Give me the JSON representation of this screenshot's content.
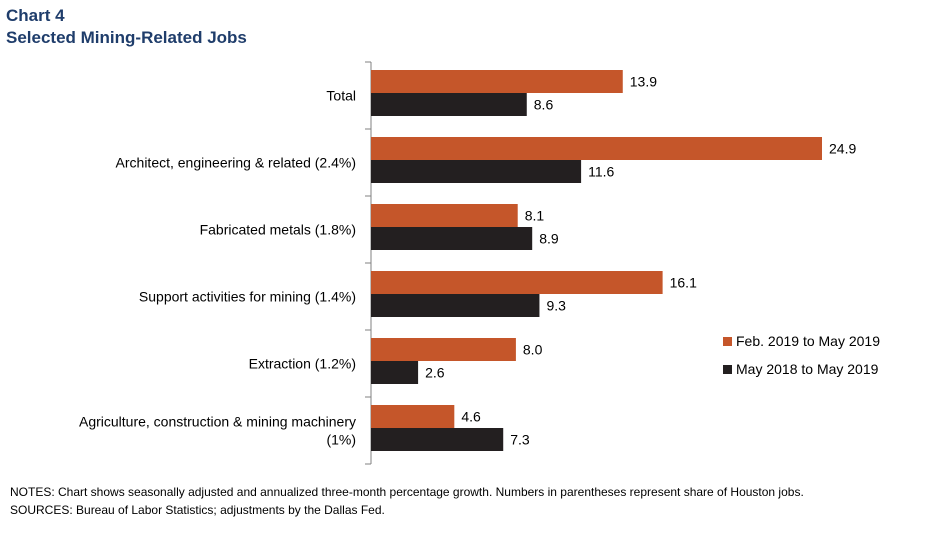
{
  "header": {
    "chart_number": "Chart 4",
    "title": "Selected Mining-Related Jobs"
  },
  "chart_data": {
    "type": "bar",
    "orientation": "horizontal",
    "categories": [
      [
        "Total"
      ],
      [
        "Architect, engineering & related (2.4%)"
      ],
      [
        "Fabricated metals (1.8%)"
      ],
      [
        "Support activities for mining (1.4%)"
      ],
      [
        "Extraction (1.2%)"
      ],
      [
        "Agriculture, construction & mining machinery",
        "(1%)"
      ]
    ],
    "series": [
      {
        "name": "Feb. 2019 to May 2019",
        "color": "#c5562a",
        "values": [
          13.9,
          24.9,
          8.1,
          16.1,
          8.0,
          4.6
        ]
      },
      {
        "name": "May 2018 to May 2019",
        "color": "#231f20",
        "values": [
          8.6,
          11.6,
          8.9,
          9.3,
          2.6,
          7.3
        ]
      }
    ],
    "value_labels": [
      [
        "13.9",
        "24.9",
        "8.1",
        "16.1",
        "8.0",
        "4.6"
      ],
      [
        "8.6",
        "11.6",
        "8.9",
        "9.3",
        "2.6",
        "7.3"
      ]
    ],
    "xlim": [
      0,
      30
    ],
    "grid": false,
    "legend_position": "right"
  },
  "notes": {
    "line1": "NOTES: Chart shows seasonally adjusted and annualized three-month percentage growth. Numbers in parentheses represent share of Houston jobs.",
    "line2": "SOURCES: Bureau of Labor Statistics; adjustments by the Dallas Fed."
  }
}
